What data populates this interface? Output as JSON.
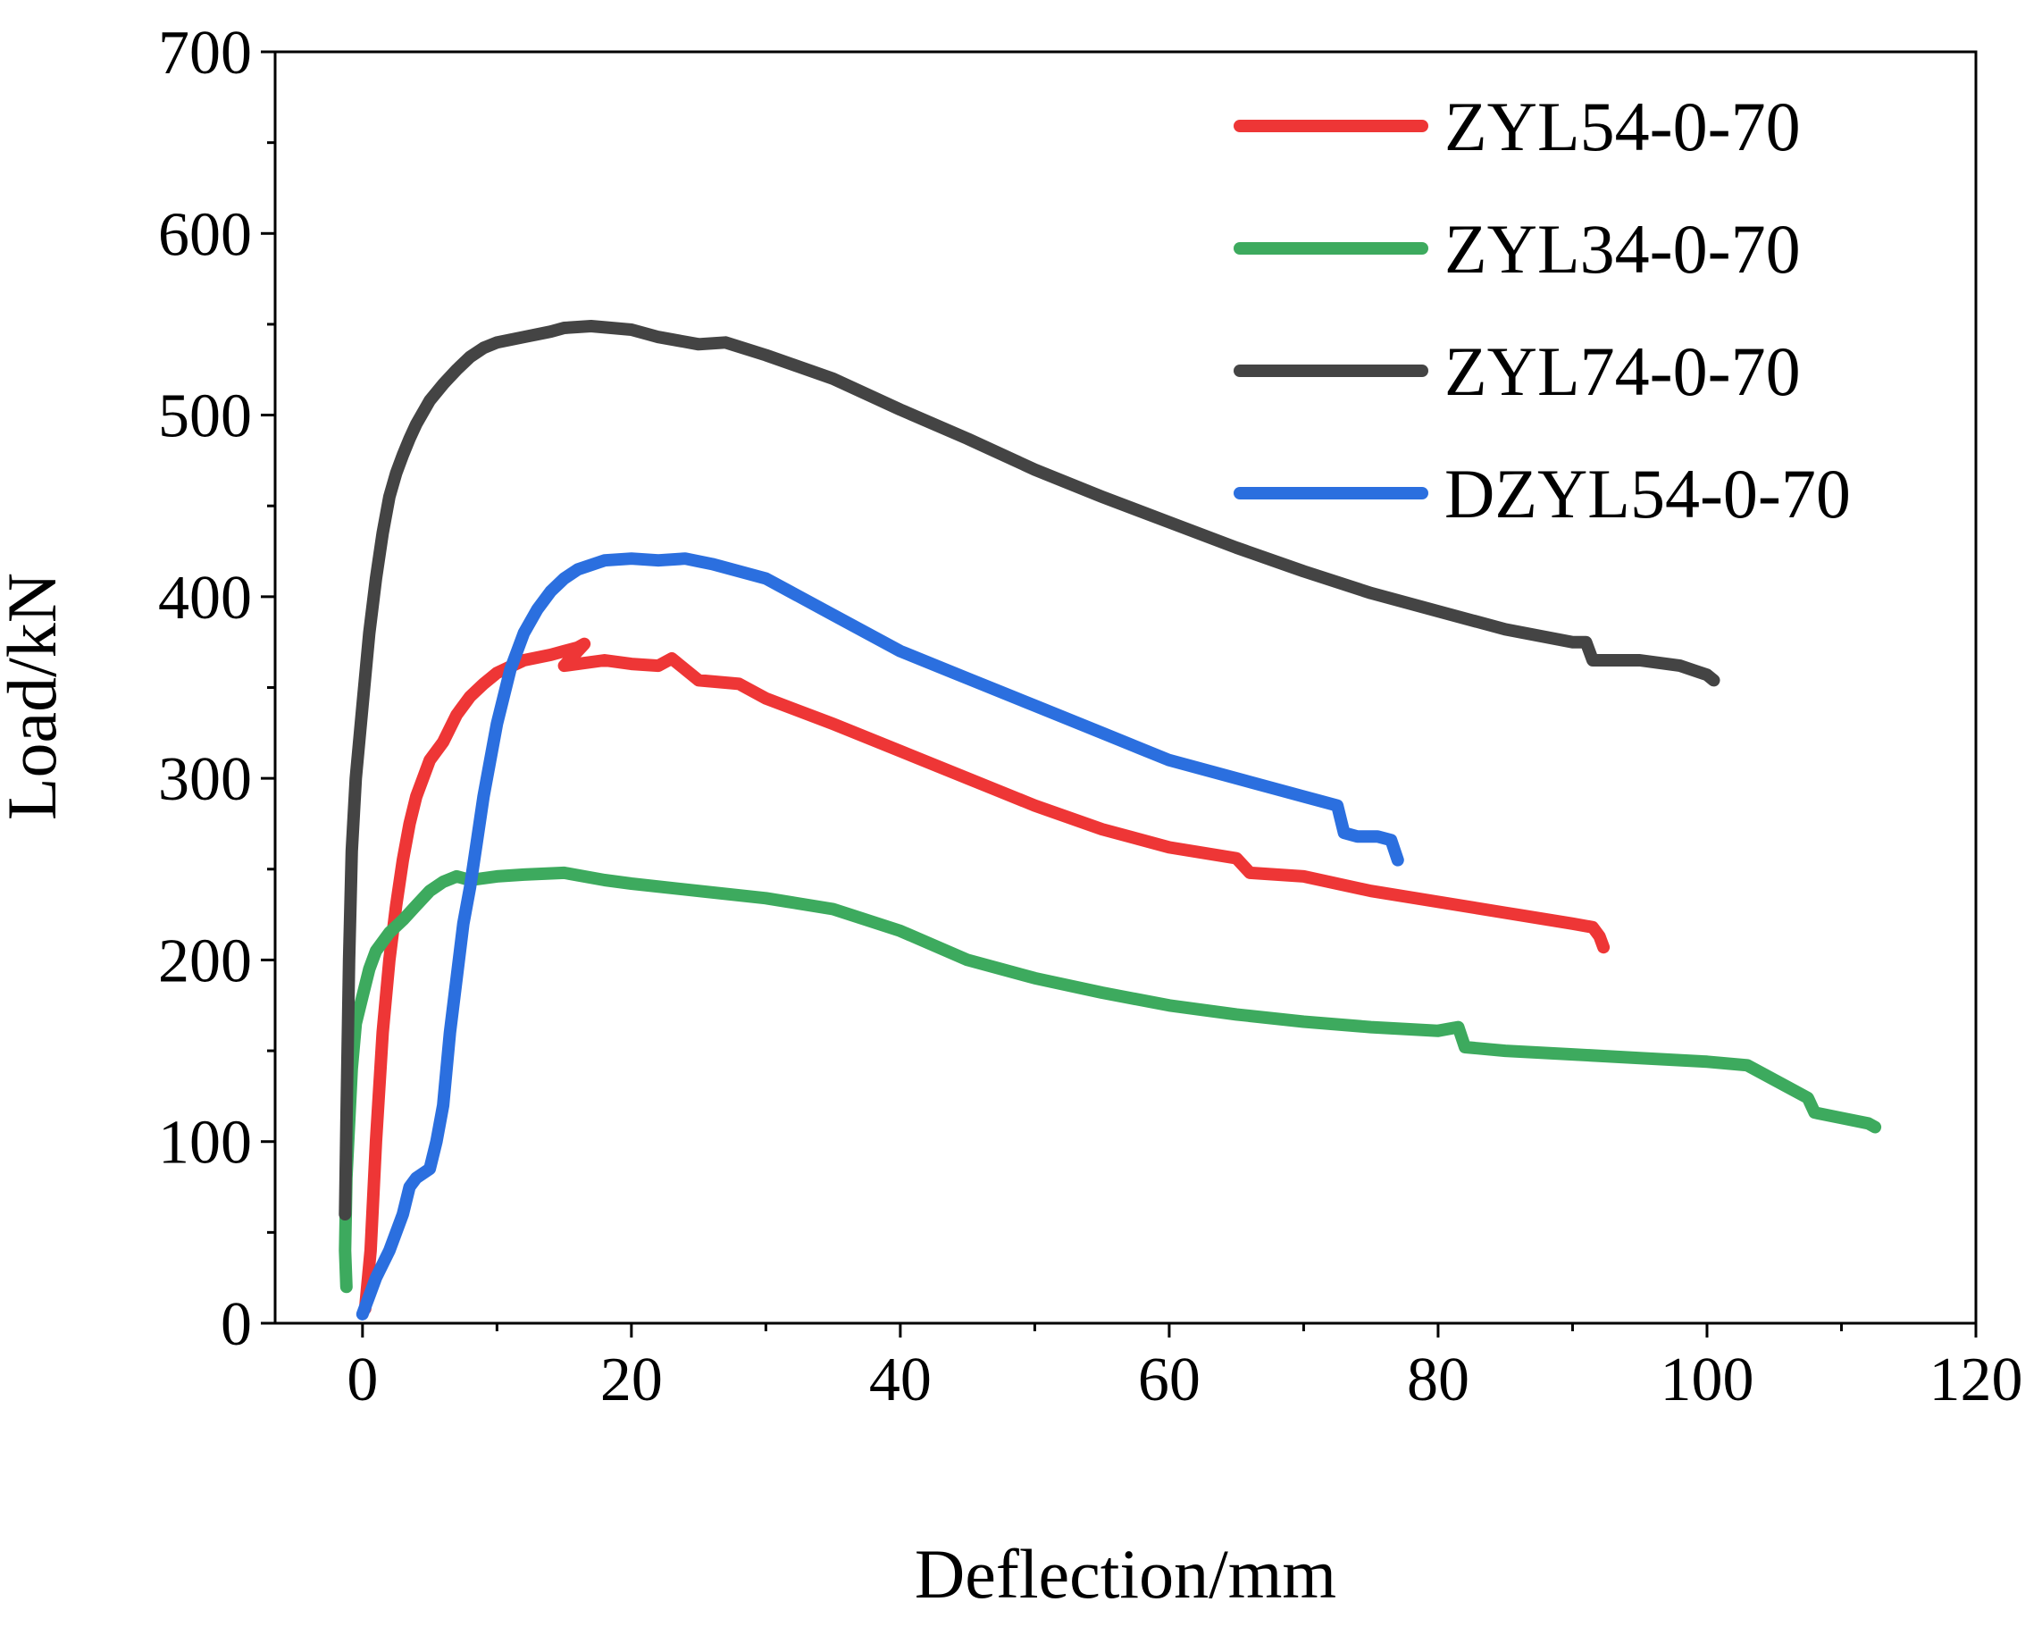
{
  "chart_data": {
    "type": "line",
    "title": "",
    "xlabel": "Deflection/mm",
    "ylabel": "Load/kN",
    "xlim": [
      -6.5,
      120
    ],
    "ylim": [
      0,
      700
    ],
    "xticks": [
      0,
      20,
      40,
      60,
      80,
      100,
      120
    ],
    "xtick_labels": [
      "0",
      "20",
      "40",
      "60",
      "80",
      "100",
      "120"
    ],
    "yticks": [
      0,
      100,
      200,
      300,
      400,
      500,
      600,
      700
    ],
    "ytick_labels": [
      "0",
      "100",
      "200",
      "300",
      "400",
      "500",
      "600",
      "700"
    ],
    "grid": false,
    "legend_position": "top-right",
    "series": [
      {
        "name": "ZYL54-0-70",
        "color": "#ee3636",
        "x": [
          0.2,
          0.6,
          1.0,
          1.5,
          2.0,
          2.5,
          3.0,
          3.5,
          4.0,
          4.5,
          5.0,
          6.0,
          7.0,
          8.0,
          9.0,
          10.0,
          12.0,
          14.0,
          15.0,
          16.0,
          16.5,
          15.0,
          18.0,
          20.0,
          22.0,
          23.0,
          25.0,
          28.0,
          30.0,
          35.0,
          40.0,
          45.0,
          50.0,
          55.0,
          60.0,
          65.0,
          66.0,
          70.0,
          75.0,
          80.0,
          85.0,
          90.0,
          91.5,
          92.0,
          92.3
        ],
        "y": [
          8,
          40,
          100,
          160,
          200,
          230,
          255,
          275,
          290,
          300,
          310,
          320,
          335,
          345,
          352,
          358,
          365,
          368,
          370,
          372,
          374,
          362,
          365,
          363,
          362,
          366,
          354,
          352,
          344,
          330,
          315,
          300,
          285,
          272,
          262,
          256,
          248,
          246,
          238,
          232,
          226,
          220,
          218,
          213,
          207
        ]
      },
      {
        "name": "ZYL34-0-70",
        "color": "#3daa5e",
        "x": [
          -1.2,
          -1.3,
          -1.2,
          -1.0,
          -0.8,
          -0.5,
          0.0,
          0.5,
          1.0,
          2.0,
          3.0,
          4.0,
          5.0,
          6.0,
          7.0,
          8.0,
          10.0,
          12.0,
          15.0,
          18.0,
          20.0,
          25.0,
          30.0,
          35.0,
          40.0,
          45.0,
          50.0,
          55.0,
          60.0,
          65.0,
          70.0,
          75.0,
          80.0,
          81.5,
          82.0,
          85.0,
          90.0,
          95.0,
          100.0,
          103.0,
          106.0,
          107.5,
          108.0,
          110.0,
          112.0,
          112.5
        ],
        "y": [
          20,
          40,
          80,
          110,
          140,
          165,
          180,
          195,
          205,
          215,
          222,
          230,
          238,
          243,
          246,
          244,
          246,
          247,
          248,
          244,
          242,
          238,
          234,
          228,
          216,
          200,
          190,
          182,
          175,
          170,
          166,
          163,
          161,
          163,
          152,
          150,
          148,
          146,
          144,
          142,
          130,
          124,
          116,
          113,
          110,
          108
        ]
      },
      {
        "name": "ZYL74-0-70",
        "color": "#444444",
        "x": [
          -1.3,
          -1.2,
          -1.0,
          -0.8,
          -0.5,
          0.0,
          0.5,
          1.0,
          1.5,
          2.0,
          2.5,
          3.0,
          3.5,
          4.0,
          5.0,
          6.0,
          7.0,
          8.0,
          9.0,
          10.0,
          12.0,
          14.0,
          15.0,
          17.0,
          20.0,
          22.0,
          25.0,
          27.0,
          30.0,
          35.0,
          40.0,
          45.0,
          50.0,
          55.0,
          60.0,
          65.0,
          70.0,
          75.0,
          80.0,
          85.0,
          90.0,
          91.0,
          91.5,
          95.0,
          98.0,
          100.0,
          100.5
        ],
        "y": [
          60,
          110,
          200,
          260,
          300,
          340,
          380,
          410,
          435,
          455,
          468,
          478,
          487,
          495,
          508,
          517,
          525,
          532,
          537,
          540,
          543,
          546,
          548,
          549,
          547,
          543,
          539,
          540,
          533,
          520,
          503,
          487,
          470,
          455,
          441,
          427,
          414,
          402,
          392,
          382,
          375,
          375,
          365,
          365,
          362,
          357,
          354
        ]
      },
      {
        "name": "DZYL54-0-70",
        "color": "#2b6fdf",
        "x": [
          0.0,
          0.5,
          1.0,
          2.0,
          3.0,
          3.5,
          4.0,
          5.0,
          5.5,
          6.0,
          6.5,
          7.0,
          7.5,
          8.0,
          8.5,
          9.0,
          9.5,
          10.0,
          11.0,
          12.0,
          13.0,
          14.0,
          15.0,
          16.0,
          18.0,
          20.0,
          22.0,
          24.0,
          26.0,
          30.0,
          35.0,
          40.0,
          45.0,
          50.0,
          55.0,
          60.0,
          65.0,
          70.0,
          72.5,
          73.0,
          74.0,
          75.5,
          76.5,
          77.0
        ],
        "y": [
          5,
          15,
          25,
          40,
          60,
          75,
          80,
          85,
          100,
          120,
          160,
          190,
          220,
          240,
          265,
          290,
          310,
          330,
          360,
          380,
          393,
          403,
          410,
          415,
          420,
          421,
          420,
          421,
          418,
          410,
          390,
          370,
          355,
          340,
          325,
          310,
          300,
          290,
          285,
          270,
          268,
          268,
          266,
          255
        ]
      }
    ]
  }
}
